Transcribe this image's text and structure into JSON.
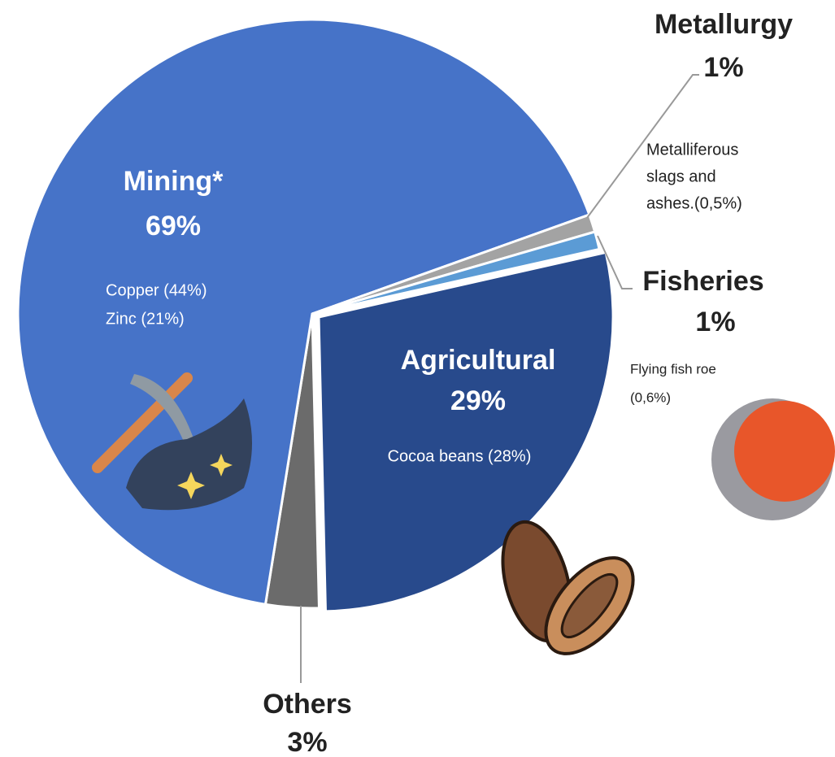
{
  "chart_data": {
    "type": "pie",
    "categories": [
      "Agricultural",
      "Others",
      "Mining*",
      "Metallurgy",
      "Fisheries"
    ],
    "values": [
      29,
      3,
      69,
      1,
      1
    ],
    "value_labels": [
      "29%",
      "3%",
      "69%",
      "1%",
      "1%"
    ],
    "colors": [
      "#284a8c",
      "#6b6b6b",
      "#4673c8",
      "#a3a3a3",
      "#5b9bd5"
    ],
    "details": [
      [
        "Cocoa beans (28%)"
      ],
      [],
      [
        "Copper (44%)",
        "Zinc (21%)"
      ],
      [
        "Metalliferous",
        "slags and",
        "ashes.(0,5%)"
      ],
      [
        "Flying fish roe",
        "(0,6%)"
      ]
    ]
  }
}
